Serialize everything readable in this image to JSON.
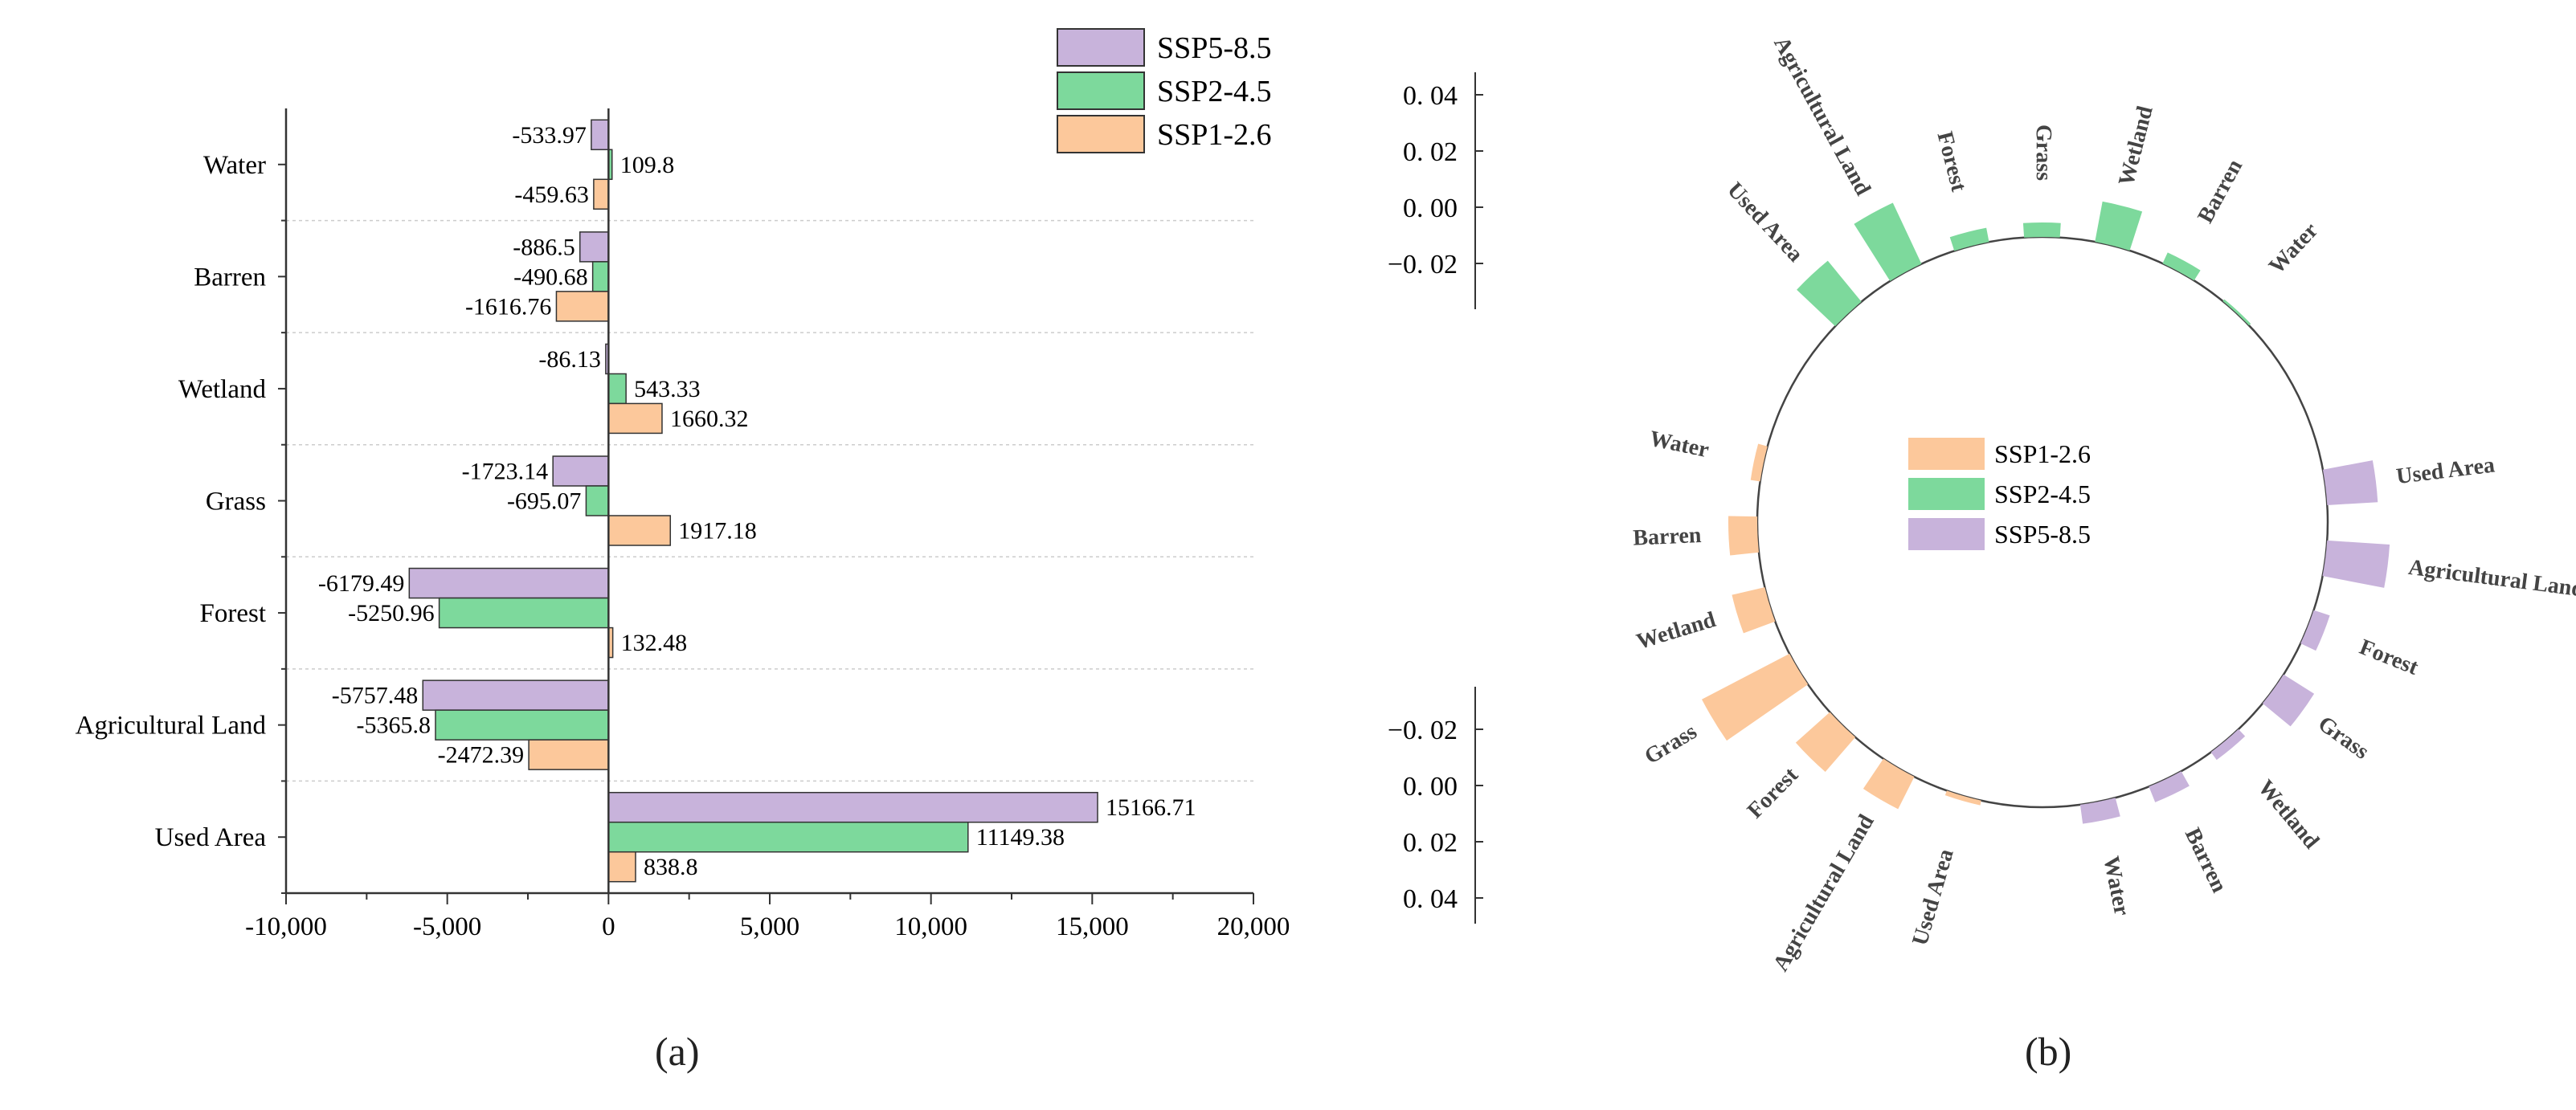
{
  "colors": {
    "SSP1-2.6": "#fcc89b",
    "SSP2-4.5": "#7dd99c",
    "SSP5-8.5": "#c8b3db",
    "axis": "#333333",
    "grid": "#cccccc"
  },
  "panel_labels": {
    "a": "(a)",
    "b": "(b)"
  },
  "chart_data": [
    {
      "type": "bar",
      "orientation": "horizontal",
      "categories": [
        "Used Area",
        "Agricultural Land",
        "Forest",
        "Grass",
        "Wetland",
        "Barren",
        "Water"
      ],
      "series": [
        {
          "name": "SSP5-8.5",
          "values": [
            15166.71,
            -5757.48,
            -6179.49,
            -1723.14,
            -86.13,
            -886.5,
            -533.97
          ],
          "labels": [
            "15166.71",
            "-5757.48",
            "-6179.49",
            "-1723.14",
            "-86.13",
            "-886.5",
            "-533.97"
          ]
        },
        {
          "name": "SSP2-4.5",
          "values": [
            11149.38,
            -5365.8,
            -5250.96,
            -695.07,
            543.33,
            -490.68,
            109.8
          ],
          "labels": [
            "11149.38",
            "-5365.8",
            "-5250.96",
            "-695.07",
            "543.33",
            "-490.68",
            "109.8"
          ]
        },
        {
          "name": "SSP1-2.6",
          "values": [
            838.8,
            -2472.39,
            132.48,
            1917.18,
            1660.32,
            -1616.76,
            -459.63
          ],
          "labels": [
            "838.8",
            "-2472.39",
            "132.48",
            "1917.18",
            "1660.32",
            "-1616.76",
            "-459.63"
          ]
        }
      ],
      "xlim": [
        -10000,
        20000
      ],
      "xticks": [
        -10000,
        -5000,
        0,
        5000,
        10000,
        15000,
        20000
      ],
      "xtick_labels": [
        "-10,000",
        "-5,000",
        "0",
        "5,000",
        "10,000",
        "15,000",
        "20,000"
      ],
      "legend": {
        "placement": "top-right",
        "entries": [
          "SSP5-8.5",
          "SSP2-4.5",
          "SSP1-2.6"
        ]
      },
      "grid": "horizontal dotted separators"
    },
    {
      "type": "radial-bar",
      "categories": [
        "Used Area",
        "Agricultural Land",
        "Forest",
        "Grass",
        "Wetland",
        "Barren",
        "Water"
      ],
      "series": [
        {
          "name": "SSP2-4.5",
          "values": [
            0.022,
            0.028,
            0.006,
            0.006,
            0.017,
            0.005,
            0.001
          ]
        },
        {
          "name": "SSP1-2.6",
          "values": [
            0.002,
            0.015,
            0.019,
            0.041,
            0.014,
            0.012,
            0.004
          ]
        },
        {
          "name": "SSP5-8.5",
          "values": [
            0.021,
            0.026,
            0.007,
            0.015,
            0.004,
            0.007,
            0.008
          ]
        }
      ],
      "axes": [
        {
          "ticks": [
            0.04,
            0.02,
            0.0,
            -0.02
          ],
          "tick_labels": [
            "0. 04",
            "0. 02",
            "0. 00",
            "−0. 02"
          ]
        },
        {
          "ticks": [
            -0.02,
            0.0,
            0.02,
            0.04
          ],
          "tick_labels": [
            "−0. 02",
            "0. 00",
            "0. 02",
            "0. 04"
          ]
        }
      ],
      "legend": {
        "placement": "center",
        "entries": [
          "SSP1-2.6",
          "SSP2-4.5",
          "SSP5-8.5"
        ]
      }
    }
  ]
}
